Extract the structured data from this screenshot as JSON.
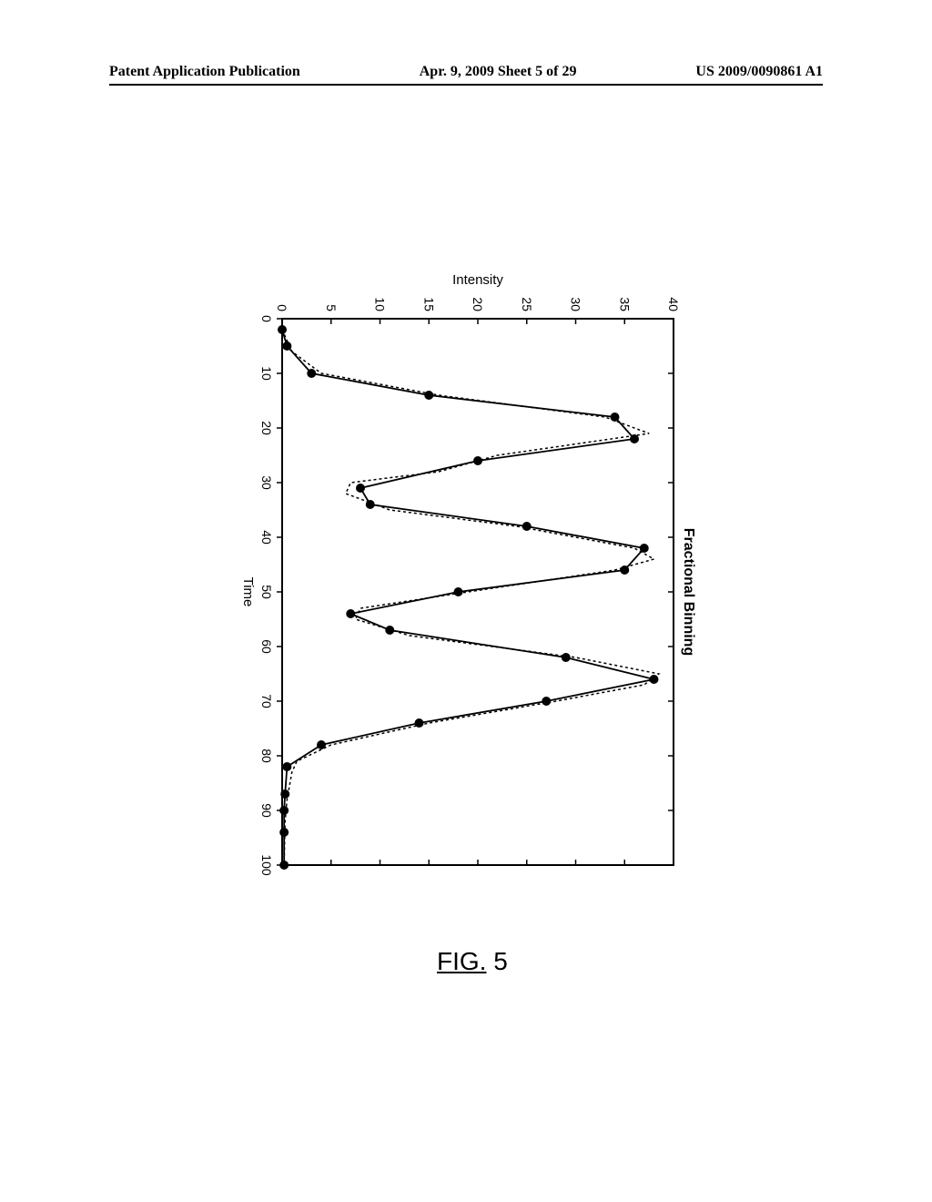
{
  "header": {
    "left": "Patent Application Publication",
    "center": "Apr. 9, 2009  Sheet 5 of 29",
    "right": "US 2009/0090861 A1"
  },
  "figure_label": {
    "prefix": "FIG.",
    "number": "5"
  },
  "chart": {
    "type": "line",
    "title": "Fractional Binning",
    "title_fontsize": 16,
    "xlabel": "Time",
    "ylabel": "Intensity",
    "label_fontsize": 15,
    "tick_fontsize": 14,
    "background_color": "#ffffff",
    "axis_color": "#000000",
    "xlim": [
      0,
      100
    ],
    "ylim": [
      0,
      40
    ],
    "xtick_step": 10,
    "ytick_step": 5,
    "xticks": [
      0,
      10,
      20,
      30,
      40,
      50,
      60,
      70,
      80,
      90,
      100
    ],
    "yticks": [
      0,
      5,
      10,
      15,
      20,
      25,
      30,
      35,
      40
    ],
    "line_width": 1.8,
    "dotted_line_width": 1.5,
    "marker_size": 5,
    "marker_color": "#000000",
    "line_color": "#000000",
    "dotted_color": "#000000",
    "solid_data": [
      {
        "x": 2,
        "y": 0
      },
      {
        "x": 5,
        "y": 0.5
      },
      {
        "x": 10,
        "y": 3
      },
      {
        "x": 14,
        "y": 15
      },
      {
        "x": 18,
        "y": 34
      },
      {
        "x": 22,
        "y": 36
      },
      {
        "x": 26,
        "y": 20
      },
      {
        "x": 31,
        "y": 8
      },
      {
        "x": 34,
        "y": 9
      },
      {
        "x": 38,
        "y": 25
      },
      {
        "x": 42,
        "y": 37
      },
      {
        "x": 46,
        "y": 35
      },
      {
        "x": 50,
        "y": 18
      },
      {
        "x": 54,
        "y": 7
      },
      {
        "x": 57,
        "y": 11
      },
      {
        "x": 62,
        "y": 29
      },
      {
        "x": 66,
        "y": 38
      },
      {
        "x": 70,
        "y": 27
      },
      {
        "x": 74,
        "y": 14
      },
      {
        "x": 78,
        "y": 4
      },
      {
        "x": 82,
        "y": 0.5
      },
      {
        "x": 87,
        "y": 0.3
      },
      {
        "x": 90,
        "y": 0.2
      },
      {
        "x": 94,
        "y": 0.2
      },
      {
        "x": 100,
        "y": 0.2
      }
    ],
    "dotted_data": [
      {
        "x": 2,
        "y": 0
      },
      {
        "x": 6,
        "y": 1
      },
      {
        "x": 10,
        "y": 4
      },
      {
        "x": 14,
        "y": 16
      },
      {
        "x": 18,
        "y": 33
      },
      {
        "x": 21,
        "y": 37.5
      },
      {
        "x": 25,
        "y": 22
      },
      {
        "x": 27,
        "y": 18
      },
      {
        "x": 28,
        "y": 16
      },
      {
        "x": 30,
        "y": 7
      },
      {
        "x": 32,
        "y": 6.5
      },
      {
        "x": 35,
        "y": 11
      },
      {
        "x": 38,
        "y": 24
      },
      {
        "x": 42,
        "y": 36
      },
      {
        "x": 44,
        "y": 38
      },
      {
        "x": 46,
        "y": 34
      },
      {
        "x": 50,
        "y": 19
      },
      {
        "x": 53,
        "y": 8
      },
      {
        "x": 55,
        "y": 7.5
      },
      {
        "x": 58,
        "y": 13
      },
      {
        "x": 62,
        "y": 30
      },
      {
        "x": 65,
        "y": 38.5
      },
      {
        "x": 67,
        "y": 37
      },
      {
        "x": 70,
        "y": 28
      },
      {
        "x": 74,
        "y": 15
      },
      {
        "x": 78,
        "y": 5
      },
      {
        "x": 81,
        "y": 1.5
      },
      {
        "x": 83,
        "y": 1
      },
      {
        "x": 88,
        "y": 0.5
      },
      {
        "x": 92,
        "y": 0.3
      },
      {
        "x": 100,
        "y": 0.2
      }
    ]
  }
}
